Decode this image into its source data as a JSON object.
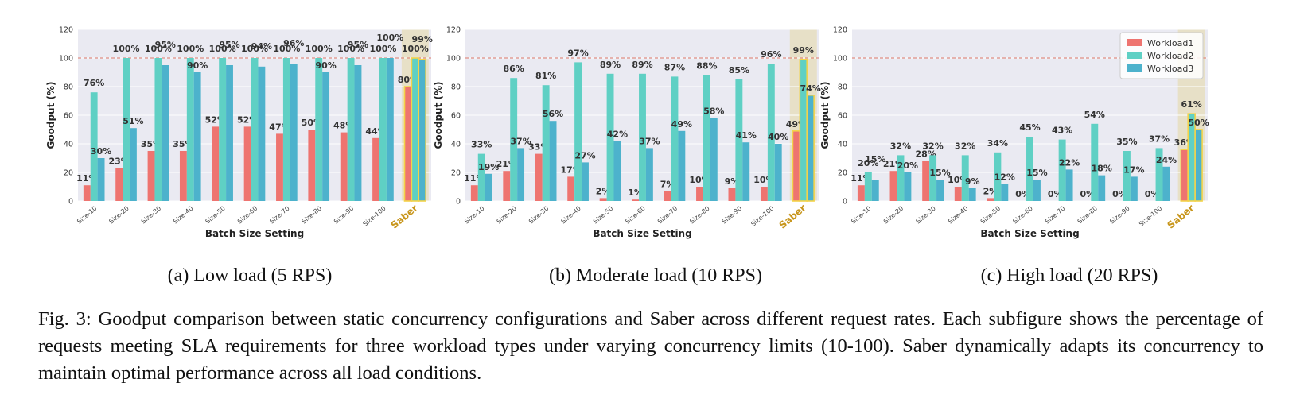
{
  "chart_data": [
    {
      "type": "bar",
      "subcaption": "(a) Low load (5 RPS)",
      "xlabel": "Batch Size Setting",
      "ylabel": "Goodput (%)",
      "ylim": [
        0,
        120
      ],
      "yticks": [
        0,
        20,
        40,
        60,
        80,
        100,
        120
      ],
      "reference_line": 100,
      "categories": [
        "Size-10",
        "Size-20",
        "Size-30",
        "Size-40",
        "Size-50",
        "Size-60",
        "Size-70",
        "Size-80",
        "Size-90",
        "Size-100",
        "Saber"
      ],
      "highlight": "Saber",
      "grid": true,
      "series": [
        {
          "name": "Workload1",
          "values": [
            11,
            23,
            35,
            35,
            52,
            52,
            47,
            50,
            48,
            44,
            80
          ]
        },
        {
          "name": "Workload2",
          "values": [
            76,
            100,
            100,
            100,
            100,
            100,
            100,
            100,
            100,
            100,
            100
          ]
        },
        {
          "name": "Workload3",
          "values": [
            30,
            51,
            95,
            90,
            95,
            94,
            96,
            90,
            95,
            100,
            99
          ]
        }
      ]
    },
    {
      "type": "bar",
      "subcaption": "(b) Moderate load (10 RPS)",
      "xlabel": "Batch Size Setting",
      "ylabel": "Goodput (%)",
      "ylim": [
        0,
        120
      ],
      "yticks": [
        0,
        20,
        40,
        60,
        80,
        100,
        120
      ],
      "reference_line": 100,
      "categories": [
        "Size-10",
        "Size-20",
        "Size-30",
        "Size-40",
        "Size-50",
        "Size-60",
        "Size-70",
        "Size-80",
        "Size-90",
        "Size-100",
        "Saber"
      ],
      "highlight": "Saber",
      "grid": true,
      "series": [
        {
          "name": "Workload1",
          "values": [
            11,
            21,
            33,
            17,
            2,
            1,
            7,
            10,
            9,
            10,
            49
          ]
        },
        {
          "name": "Workload2",
          "values": [
            33,
            86,
            81,
            97,
            89,
            89,
            87,
            88,
            85,
            96,
            99
          ]
        },
        {
          "name": "Workload3",
          "values": [
            19,
            37,
            56,
            27,
            42,
            37,
            49,
            58,
            41,
            40,
            74
          ]
        }
      ]
    },
    {
      "type": "bar",
      "subcaption": "(c) High load (20 RPS)",
      "xlabel": "Batch Size Setting",
      "ylabel": "Goodput (%)",
      "ylim": [
        0,
        120
      ],
      "yticks": [
        0,
        20,
        40,
        60,
        80,
        100,
        120
      ],
      "reference_line": 100,
      "categories": [
        "Size-10",
        "Size-20",
        "Size-30",
        "Size-40",
        "Size-50",
        "Size-60",
        "Size-70",
        "Size-80",
        "Size-90",
        "Size-100",
        "Saber"
      ],
      "highlight": "Saber",
      "grid": true,
      "legend": "top-right",
      "series": [
        {
          "name": "Workload1",
          "values": [
            11,
            21,
            28,
            10,
            2,
            0,
            0,
            0,
            0,
            0,
            36
          ]
        },
        {
          "name": "Workload2",
          "values": [
            20,
            32,
            32,
            32,
            34,
            45,
            43,
            54,
            35,
            37,
            61
          ]
        },
        {
          "name": "Workload3",
          "values": [
            15,
            20,
            15,
            9,
            12,
            15,
            22,
            18,
            17,
            24,
            50
          ]
        }
      ]
    }
  ],
  "colors": {
    "workload1": "#ee7470",
    "workload2": "#5fd0c4",
    "workload3": "#4db2cc",
    "saber_label": "#c8961c",
    "saber_band": "#e7dfc2",
    "saber_outline": "#f3d34a",
    "reference_line": "#e07a6b",
    "plot_bg": "#eaeaf2"
  },
  "figure_caption": "Fig. 3: Goodput comparison between static concurrency configurations and Saber across different request rates. Each subfigure shows the percentage of requests meeting SLA requirements for three workload types under varying concurrency limits (10-100). Saber dynamically adapts its concurrency to maintain optimal performance across all load conditions."
}
